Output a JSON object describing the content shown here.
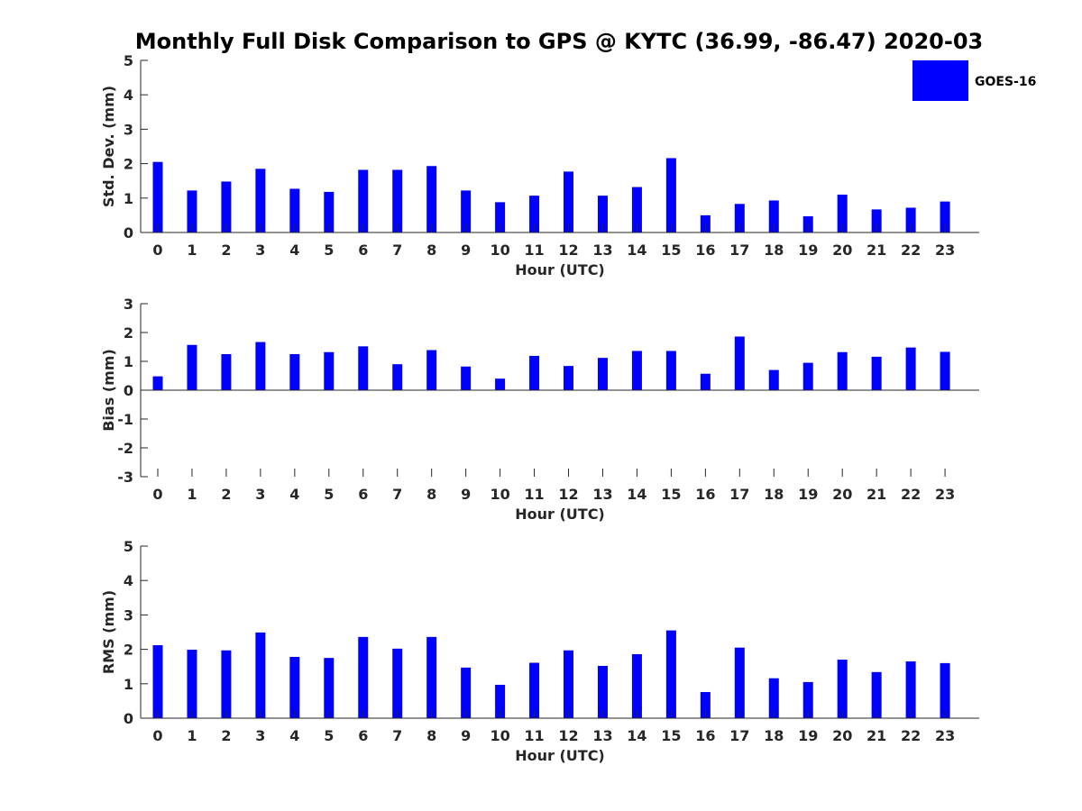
{
  "title": "Monthly Full Disk Comparison to GPS @ KYTC (36.99, -86.47) 2020-03",
  "legend": {
    "label": "GOES-16",
    "color": "#0000ff",
    "placement": "top-right"
  },
  "chart_data": [
    {
      "type": "bar",
      "xlabel": "Hour (UTC)",
      "ylabel": "Std. Dev. (mm)",
      "categories": [
        "0",
        "1",
        "2",
        "3",
        "4",
        "5",
        "6",
        "7",
        "8",
        "9",
        "10",
        "11",
        "12",
        "13",
        "14",
        "15",
        "16",
        "17",
        "18",
        "19",
        "20",
        "21",
        "22",
        "23"
      ],
      "series": [
        {
          "name": "GOES-16",
          "color": "#0000ff",
          "values": [
            2.05,
            1.22,
            1.48,
            1.85,
            1.27,
            1.18,
            1.82,
            1.82,
            1.93,
            1.22,
            0.88,
            1.07,
            1.77,
            1.07,
            1.32,
            2.16,
            0.5,
            0.83,
            0.93,
            0.47,
            1.1,
            0.67,
            0.72,
            0.9
          ]
        }
      ],
      "ylim": [
        0,
        5
      ],
      "yticks": [
        0,
        1,
        2,
        3,
        4,
        5
      ],
      "grid": false
    },
    {
      "type": "bar",
      "xlabel": "Hour (UTC)",
      "ylabel": "Bias (mm)",
      "categories": [
        "0",
        "1",
        "2",
        "3",
        "4",
        "5",
        "6",
        "7",
        "8",
        "9",
        "10",
        "11",
        "12",
        "13",
        "14",
        "15",
        "16",
        "17",
        "18",
        "19",
        "20",
        "21",
        "22",
        "23"
      ],
      "series": [
        {
          "name": "GOES-16",
          "color": "#0000ff",
          "values": [
            0.48,
            1.57,
            1.25,
            1.67,
            1.25,
            1.32,
            1.52,
            0.9,
            1.39,
            0.82,
            0.4,
            1.19,
            0.84,
            1.12,
            1.36,
            1.36,
            0.57,
            1.86,
            0.7,
            0.95,
            1.32,
            1.16,
            1.48,
            1.33
          ]
        }
      ],
      "ylim": [
        -3,
        3
      ],
      "yticks": [
        -3,
        -2,
        -1,
        0,
        1,
        2,
        3
      ],
      "grid": false
    },
    {
      "type": "bar",
      "xlabel": "Hour (UTC)",
      "ylabel": "RMS (mm)",
      "categories": [
        "0",
        "1",
        "2",
        "3",
        "4",
        "5",
        "6",
        "7",
        "8",
        "9",
        "10",
        "11",
        "12",
        "13",
        "14",
        "15",
        "16",
        "17",
        "18",
        "19",
        "20",
        "21",
        "22",
        "23"
      ],
      "series": [
        {
          "name": "GOES-16",
          "color": "#0000ff",
          "values": [
            2.12,
            1.99,
            1.97,
            2.49,
            1.78,
            1.75,
            2.36,
            2.02,
            2.36,
            1.47,
            0.97,
            1.61,
            1.97,
            1.52,
            1.86,
            2.55,
            0.76,
            2.05,
            1.16,
            1.05,
            1.7,
            1.34,
            1.65,
            1.6
          ]
        }
      ],
      "ylim": [
        0,
        5
      ],
      "yticks": [
        0,
        1,
        2,
        3,
        4,
        5
      ],
      "grid": false
    }
  ]
}
